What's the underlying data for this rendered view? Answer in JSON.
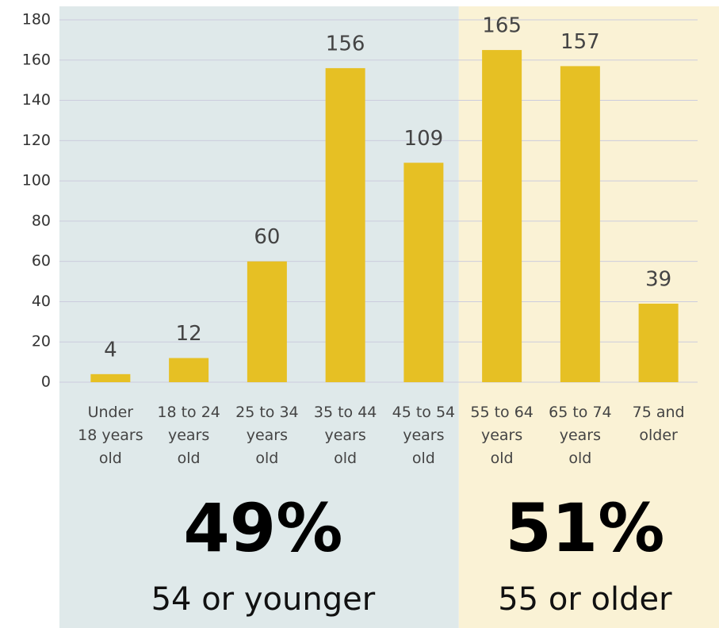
{
  "chart_data": {
    "type": "bar",
    "categories": [
      "Under 18 years old",
      "18 to 24 years old",
      "25 to 34 years old",
      "35 to 44 years old",
      "45 to 54 years old",
      "55 to 64 years old",
      "65 to 74 years old",
      "75 and older"
    ],
    "values": [
      4,
      12,
      60,
      156,
      109,
      165,
      157,
      39
    ],
    "color": "#e6c024",
    "ylim": [
      0,
      180
    ],
    "yticks": [
      0,
      20,
      40,
      60,
      80,
      100,
      120,
      140,
      160,
      180
    ],
    "grid": true,
    "annotations": [
      {
        "value": "49%",
        "label": "54 or younger"
      },
      {
        "value": "51%",
        "label": "55 or older"
      }
    ]
  }
}
